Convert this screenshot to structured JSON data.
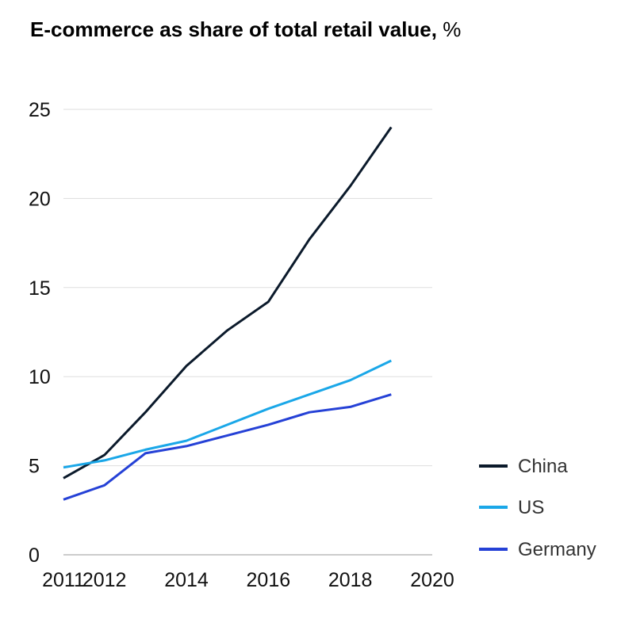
{
  "chart_data": {
    "type": "line",
    "title": "E-commerce as share of total retail value,",
    "unit": "%",
    "xlabel": "",
    "ylabel": "",
    "x_ticks": [
      "2011",
      "2012",
      "2014",
      "2016",
      "2018",
      "2020"
    ],
    "y_ticks": [
      "0",
      "5",
      "10",
      "15",
      "20",
      "25"
    ],
    "xlim": [
      2011,
      2020
    ],
    "ylim": [
      0,
      25
    ],
    "grid": true,
    "legend_position": "bottom-right",
    "x": [
      2011,
      2012,
      2013,
      2014,
      2015,
      2016,
      2017,
      2018,
      2019
    ],
    "series": [
      {
        "name": "China",
        "color": "#0b1a2b",
        "values": [
          4.3,
          5.6,
          8.0,
          10.6,
          12.6,
          14.2,
          17.7,
          20.7,
          24.0
        ]
      },
      {
        "name": "US",
        "color": "#1aa7e8",
        "values": [
          4.9,
          5.3,
          5.9,
          6.4,
          7.3,
          8.2,
          9.0,
          9.8,
          10.9
        ]
      },
      {
        "name": "Germany",
        "color": "#2541d6",
        "values": [
          3.1,
          3.9,
          5.7,
          6.1,
          6.7,
          7.3,
          8.0,
          8.3,
          9.0
        ]
      }
    ]
  }
}
